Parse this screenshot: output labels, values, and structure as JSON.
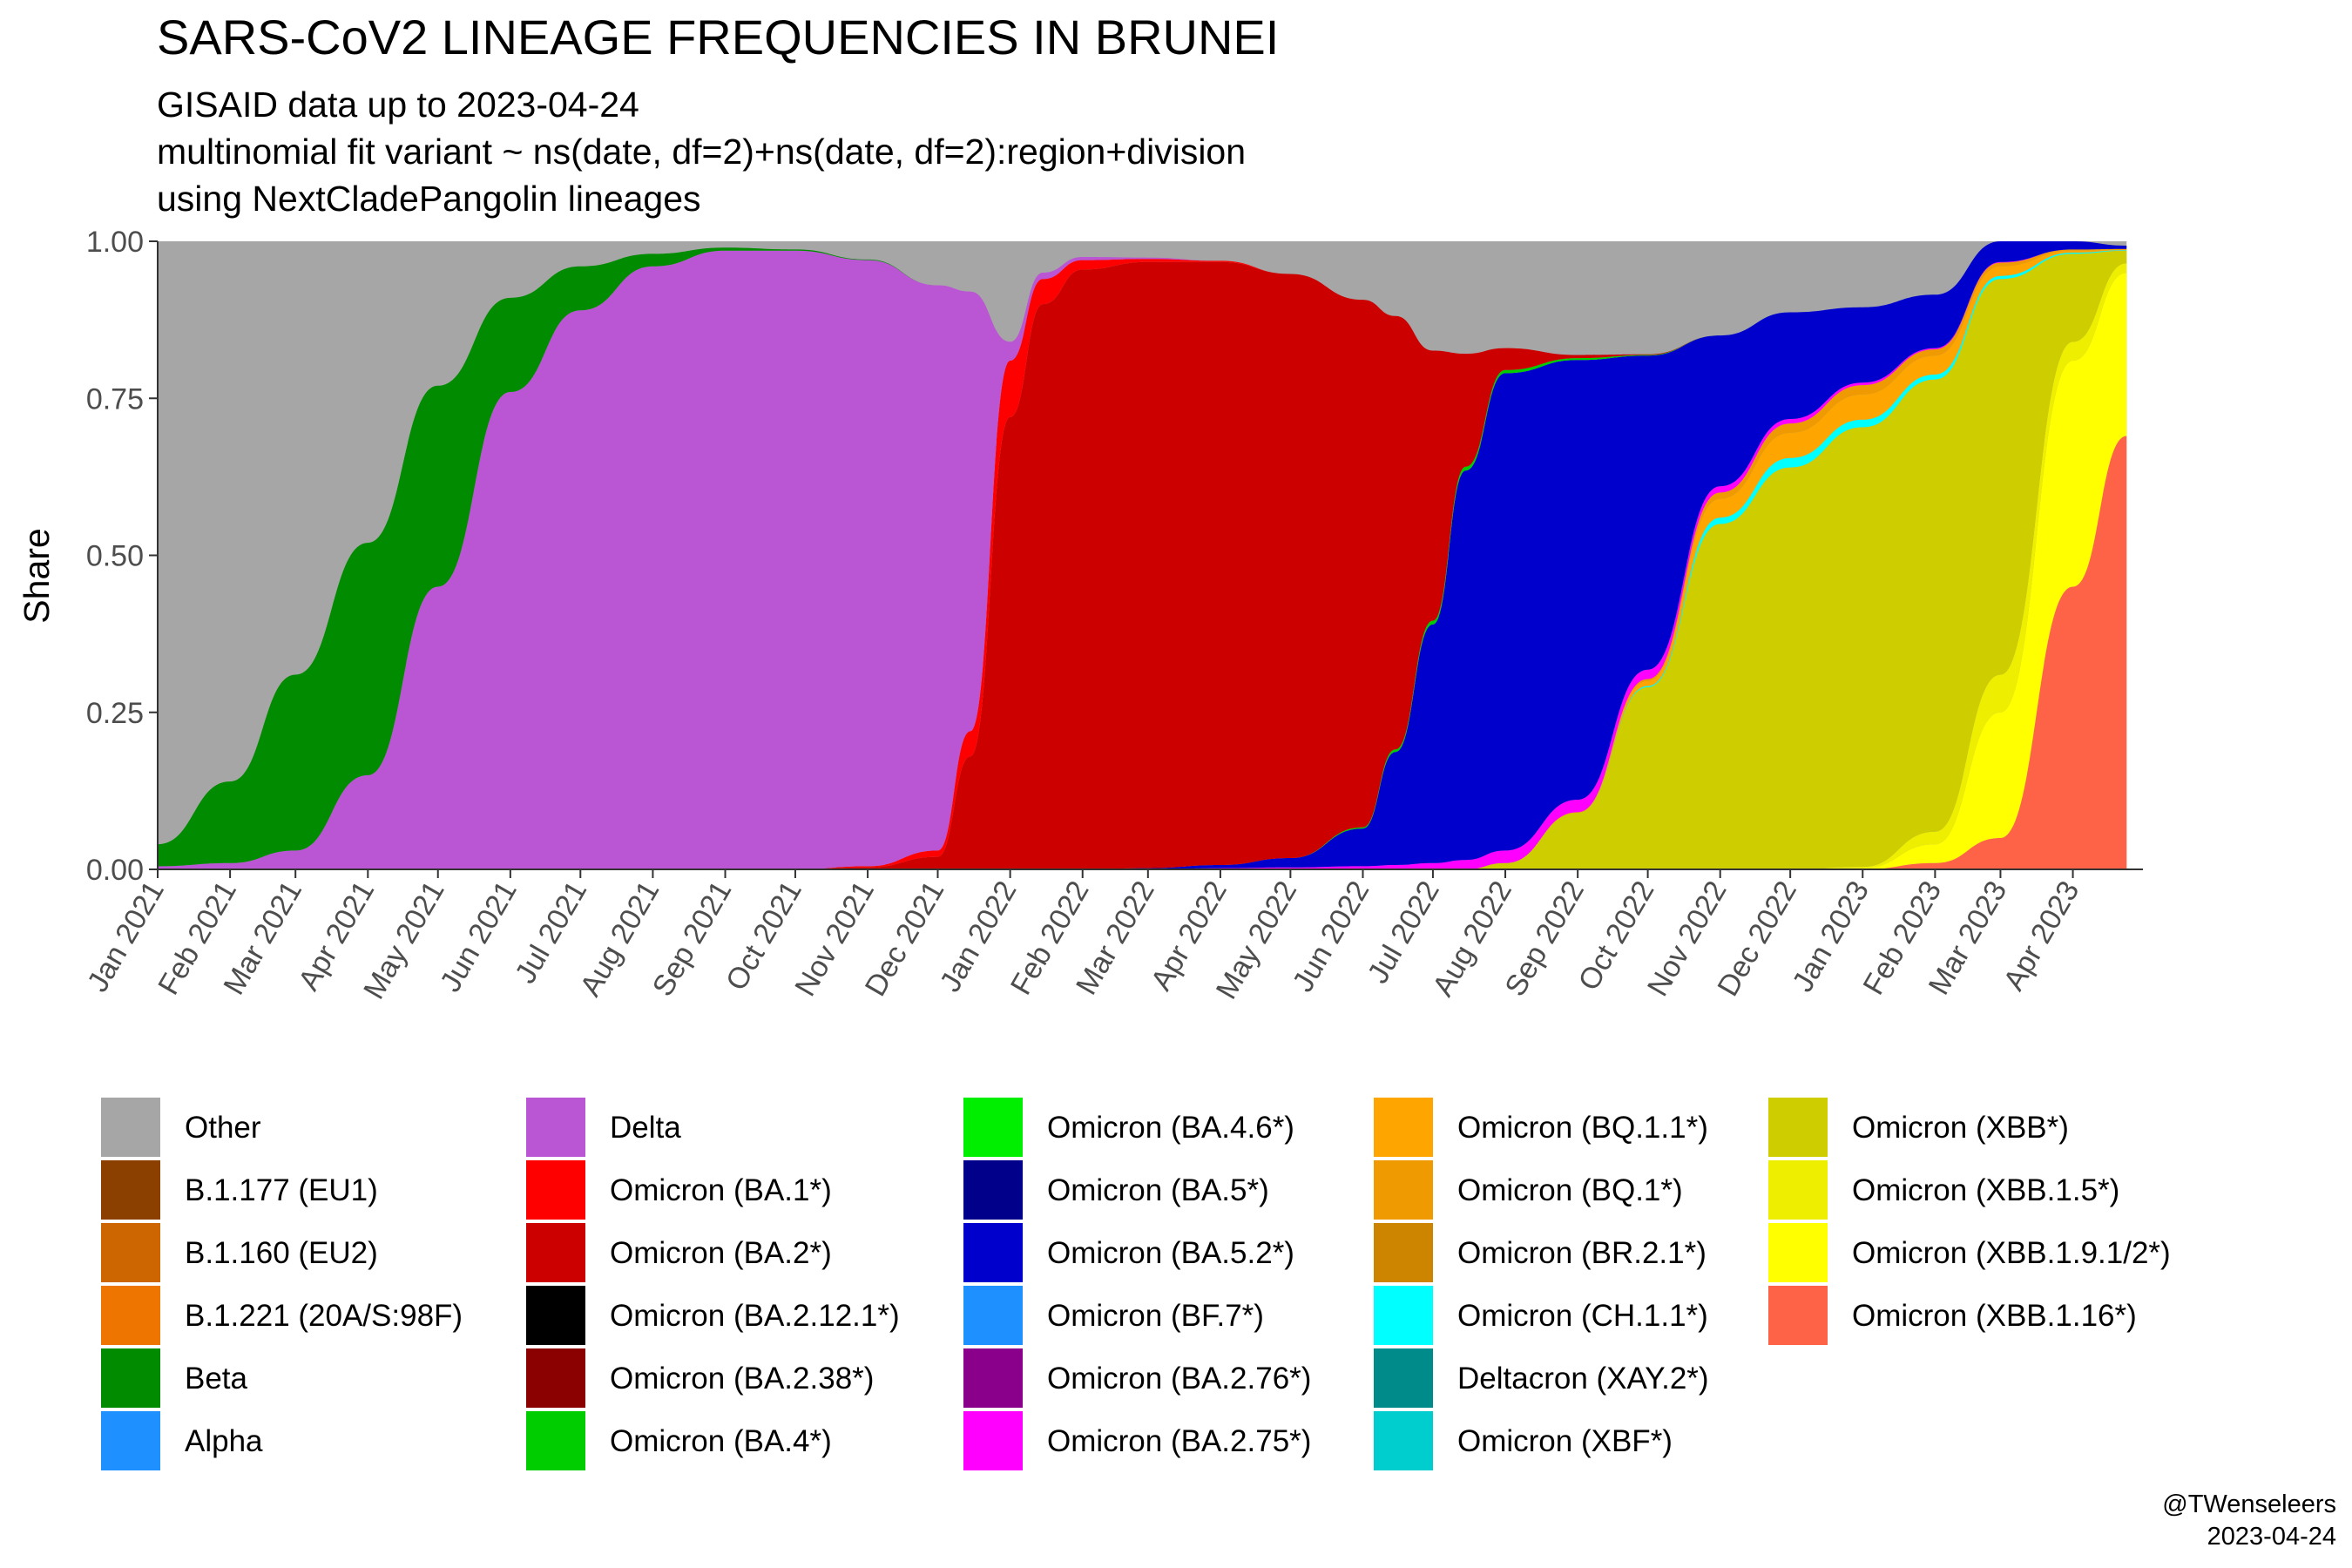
{
  "chart_data": {
    "type": "area",
    "stacked": true,
    "normalized": true,
    "title": "SARS-CoV2 LINEAGE FREQUENCIES IN BRUNEI",
    "subtitle_lines": [
      "GISAID data up to 2023-04-24",
      "multinomial fit variant ~ ns(date, df=2)+ns(date, df=2):region+division",
      "using NextCladePangolin lineages"
    ],
    "xlabel": "",
    "ylabel": "Share",
    "ylim": [
      0,
      1
    ],
    "x_range": [
      "2021-01-01",
      "2023-05-01"
    ],
    "y_ticks": [
      "0.00",
      "0.25",
      "0.50",
      "0.75",
      "1.00"
    ],
    "x_ticks": [
      "Jan 2021",
      "Feb 2021",
      "Mar 2021",
      "Apr 2021",
      "May 2021",
      "Jun 2021",
      "Jul 2021",
      "Aug 2021",
      "Sep 2021",
      "Oct 2021",
      "Nov 2021",
      "Dec 2021",
      "Jan 2022",
      "Feb 2022",
      "Mar 2022",
      "Apr 2022",
      "May 2022",
      "Jun 2022",
      "Jul 2022",
      "Aug 2022",
      "Sep 2022",
      "Oct 2022",
      "Nov 2022",
      "Dec 2022",
      "Jan 2023",
      "Feb 2023",
      "Mar 2023",
      "Apr 2023"
    ],
    "grid": false,
    "background": "#ffffff",
    "legend_position": "bottom",
    "legend": [
      {
        "label": "Other",
        "color": "#A6A6A6"
      },
      {
        "label": "B.1.177 (EU1)",
        "color": "#8B4000"
      },
      {
        "label": "B.1.160 (EU2)",
        "color": "#CD6600"
      },
      {
        "label": "B.1.221 (20A/S:98F)",
        "color": "#EE7600"
      },
      {
        "label": "Beta",
        "color": "#008B00"
      },
      {
        "label": "Alpha",
        "color": "#1E90FF"
      },
      {
        "label": "Delta",
        "color": "#BA55D3"
      },
      {
        "label": "Omicron (BA.1*)",
        "color": "#FF0000"
      },
      {
        "label": "Omicron (BA.2*)",
        "color": "#CD0000"
      },
      {
        "label": "Omicron (BA.2.12.1*)",
        "color": "#000000"
      },
      {
        "label": "Omicron (BA.2.38*)",
        "color": "#8B0000"
      },
      {
        "label": "Omicron (BA.4*)",
        "color": "#00CD00"
      },
      {
        "label": "Omicron (BA.4.6*)",
        "color": "#00EE00"
      },
      {
        "label": "Omicron (BA.5*)",
        "color": "#00008B"
      },
      {
        "label": "Omicron (BA.5.2*)",
        "color": "#0000CD"
      },
      {
        "label": "Omicron (BF.7*)",
        "color": "#1E90FF"
      },
      {
        "label": "Omicron (BA.2.76*)",
        "color": "#8B008B"
      },
      {
        "label": "Omicron (BA.2.75*)",
        "color": "#FF00FF"
      },
      {
        "label": "Omicron (BQ.1.1*)",
        "color": "#FFA500"
      },
      {
        "label": "Omicron (BQ.1*)",
        "color": "#EE9A00"
      },
      {
        "label": "Omicron (BR.2.1*)",
        "color": "#CD8500"
      },
      {
        "label": "Omicron (CH.1.1*)",
        "color": "#00FFFF"
      },
      {
        "label": "Deltacron (XAY.2*)",
        "color": "#008B8B"
      },
      {
        "label": "Omicron (XBF*)",
        "color": "#00CDCD"
      },
      {
        "label": "Omicron (XBB*)",
        "color": "#CDCD00"
      },
      {
        "label": "Omicron (XBB.1.5*)",
        "color": "#EEEE00"
      },
      {
        "label": "Omicron (XBB.1.9.1/2*)",
        "color": "#FFFF00"
      },
      {
        "label": "Omicron (XBB.1.16*)",
        "color": "#FF6347"
      }
    ],
    "x": [
      "2021-01-01",
      "2021-02-01",
      "2021-03-01",
      "2021-04-01",
      "2021-05-01",
      "2021-06-01",
      "2021-07-01",
      "2021-08-01",
      "2021-09-01",
      "2021-10-01",
      "2021-11-01",
      "2021-12-01",
      "2021-12-15",
      "2022-01-01",
      "2022-01-15",
      "2022-02-01",
      "2022-03-01",
      "2022-04-01",
      "2022-05-01",
      "2022-06-01",
      "2022-06-15",
      "2022-07-01",
      "2022-07-15",
      "2022-08-01",
      "2022-09-01",
      "2022-10-01",
      "2022-11-01",
      "2022-12-01",
      "2023-01-01",
      "2023-02-01",
      "2023-03-01",
      "2023-04-01",
      "2023-04-24"
    ],
    "series": [
      {
        "label": "Omicron (XBB.1.16*)",
        "color": "#FF6347",
        "values": [
          0,
          0,
          0,
          0,
          0,
          0,
          0,
          0,
          0,
          0,
          0,
          0,
          0,
          0,
          0,
          0,
          0,
          0,
          0,
          0,
          0,
          0,
          0,
          0,
          0,
          0,
          0,
          0,
          0,
          0.01,
          0.05,
          0.45,
          0.69
        ]
      },
      {
        "label": "Omicron (XBB.1.9.1/2*)",
        "color": "#FFFF00",
        "values": [
          0,
          0,
          0,
          0,
          0,
          0,
          0,
          0,
          0,
          0,
          0,
          0,
          0,
          0,
          0,
          0,
          0,
          0,
          0,
          0,
          0,
          0,
          0,
          0,
          0,
          0,
          0,
          0,
          0.002,
          0.03,
          0.2,
          0.36,
          0.26
        ]
      },
      {
        "label": "Omicron (XBB.1.5*)",
        "color": "#EEEE00",
        "values": [
          0,
          0,
          0,
          0,
          0,
          0,
          0,
          0,
          0,
          0,
          0,
          0,
          0,
          0,
          0,
          0,
          0,
          0,
          0,
          0,
          0,
          0,
          0,
          0,
          0,
          0,
          0,
          0,
          0.002,
          0.02,
          0.06,
          0.03,
          0.015
        ]
      },
      {
        "label": "Omicron (XBB*)",
        "color": "#CDCD00",
        "values": [
          0,
          0,
          0,
          0,
          0,
          0,
          0,
          0,
          0,
          0,
          0,
          0,
          0,
          0,
          0,
          0,
          0,
          0,
          0,
          0,
          0,
          0,
          0,
          0.01,
          0.09,
          0.29,
          0.55,
          0.64,
          0.7,
          0.72,
          0.63,
          0.14,
          0.02
        ]
      },
      {
        "label": "Omicron (CH.1.1*)",
        "color": "#00FFFF",
        "values": [
          0,
          0,
          0,
          0,
          0,
          0,
          0,
          0,
          0,
          0,
          0,
          0,
          0,
          0,
          0,
          0,
          0,
          0,
          0,
          0,
          0,
          0,
          0,
          0,
          0,
          0.002,
          0.01,
          0.015,
          0.012,
          0.008,
          0.005,
          0.002,
          0.001
        ]
      },
      {
        "label": "Omicron (BQ.1.1*)",
        "color": "#FFA500",
        "values": [
          0,
          0,
          0,
          0,
          0,
          0,
          0,
          0,
          0,
          0,
          0,
          0,
          0,
          0,
          0,
          0,
          0,
          0,
          0,
          0,
          0,
          0,
          0,
          0,
          0.001,
          0.008,
          0.03,
          0.04,
          0.04,
          0.03,
          0.015,
          0.003,
          0.001
        ]
      },
      {
        "label": "Omicron (BQ.1*)",
        "color": "#EE9A00",
        "values": [
          0,
          0,
          0,
          0,
          0,
          0,
          0,
          0,
          0,
          0,
          0,
          0,
          0,
          0,
          0,
          0,
          0,
          0,
          0,
          0,
          0,
          0,
          0,
          0,
          0,
          0.003,
          0.01,
          0.015,
          0.015,
          0.01,
          0.006,
          0.002,
          0.001
        ]
      },
      {
        "label": "Omicron (BA.2.75*)",
        "color": "#FF00FF",
        "values": [
          0,
          0,
          0,
          0,
          0,
          0,
          0,
          0,
          0,
          0,
          0,
          0,
          0,
          0,
          0,
          0,
          0,
          0.002,
          0.003,
          0.005,
          0.007,
          0.01,
          0.015,
          0.02,
          0.02,
          0.015,
          0.01,
          0.007,
          0.004,
          0.002,
          0.001,
          0,
          0
        ]
      },
      {
        "label": "Omicron (BA.5.2*)",
        "color": "#0000CD",
        "values": [
          0,
          0,
          0,
          0,
          0,
          0,
          0,
          0,
          0,
          0,
          0,
          0,
          0,
          0,
          0,
          0,
          0.002,
          0.005,
          0.015,
          0.06,
          0.18,
          0.38,
          0.62,
          0.76,
          0.7,
          0.5,
          0.24,
          0.17,
          0.12,
          0.085,
          0.05,
          0.015,
          0.005
        ]
      },
      {
        "label": "Omicron (BA.4*)",
        "color": "#00CD00",
        "values": [
          0,
          0,
          0,
          0,
          0,
          0,
          0,
          0,
          0,
          0,
          0,
          0,
          0,
          0,
          0,
          0,
          0,
          0,
          0,
          0.002,
          0.004,
          0.006,
          0.006,
          0.005,
          0.003,
          0.001,
          0,
          0,
          0,
          0,
          0,
          0,
          0
        ]
      },
      {
        "label": "Omicron (BA.2*)",
        "color": "#CD0000",
        "values": [
          0,
          0,
          0,
          0,
          0,
          0,
          0,
          0,
          0,
          0,
          0.003,
          0.02,
          0.18,
          0.72,
          0.9,
          0.955,
          0.965,
          0.96,
          0.93,
          0.84,
          0.69,
          0.43,
          0.18,
          0.035,
          0.005,
          0.001,
          0,
          0,
          0,
          0,
          0,
          0,
          0
        ]
      },
      {
        "label": "Omicron (BA.1*)",
        "color": "#FF0000",
        "values": [
          0,
          0,
          0,
          0,
          0,
          0,
          0,
          0,
          0,
          0,
          0.002,
          0.01,
          0.04,
          0.09,
          0.04,
          0.015,
          0.005,
          0.002,
          0,
          0,
          0,
          0,
          0,
          0,
          0,
          0,
          0,
          0,
          0,
          0,
          0,
          0,
          0
        ]
      },
      {
        "label": "Delta",
        "color": "#BA55D3",
        "values": [
          0.005,
          0.01,
          0.03,
          0.15,
          0.45,
          0.76,
          0.89,
          0.96,
          0.985,
          0.985,
          0.965,
          0.9,
          0.7,
          0.03,
          0.01,
          0.005,
          0.002,
          0,
          0,
          0,
          0,
          0,
          0,
          0,
          0,
          0,
          0,
          0,
          0,
          0,
          0,
          0,
          0
        ]
      },
      {
        "label": "Beta",
        "color": "#008B00",
        "values": [
          0.035,
          0.13,
          0.28,
          0.37,
          0.32,
          0.15,
          0.07,
          0.02,
          0.005,
          0.002,
          0.001,
          0,
          0,
          0,
          0,
          0,
          0,
          0,
          0,
          0,
          0,
          0,
          0,
          0,
          0,
          0,
          0,
          0,
          0,
          0,
          0,
          0,
          0
        ]
      }
    ]
  },
  "caption_lines": [
    "@TWenseleers",
    "2023-04-24"
  ]
}
